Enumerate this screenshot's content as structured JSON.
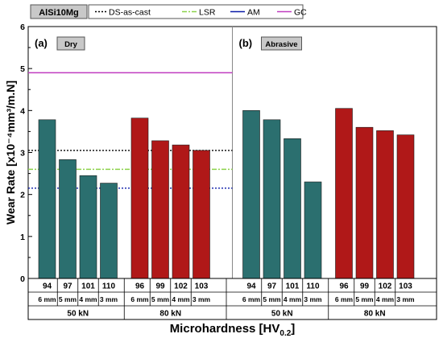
{
  "chart_data": {
    "type": "bar",
    "material": "AlSi10Mg",
    "ylabel": "Wear Rate [x10⁻⁴mm³/m.N]",
    "xlabel_main": "Microhardness [HV",
    "xlabel_sub": "0.2",
    "xlabel_close": "]",
    "ylim": [
      0,
      6
    ],
    "yticks": [
      0,
      1,
      2,
      3,
      4,
      5,
      6
    ],
    "legend": [
      {
        "label": "DS-as-cast",
        "color": "#000000",
        "dash": "dot"
      },
      {
        "label": "LSR",
        "color": "#8cd24a",
        "dash": "dashdot"
      },
      {
        "label": "AM",
        "color": "#0a1aa8",
        "dash": "solid"
      },
      {
        "label": "GC",
        "color": "#c03cc0",
        "dash": "solid"
      }
    ],
    "panels": [
      {
        "tag": "(a)",
        "condition": "Dry",
        "reference_lines": [
          {
            "name": "GC",
            "value": 4.9,
            "color": "#c03cc0",
            "dash": "solid"
          },
          {
            "name": "DS-as-cast",
            "value": 3.05,
            "color": "#000000",
            "dash": "dot"
          },
          {
            "name": "LSR",
            "value": 2.6,
            "color": "#8cd24a",
            "dash": "dashdot"
          },
          {
            "name": "AM",
            "value": 2.15,
            "color": "#0a1aa8",
            "dash": "dot"
          }
        ],
        "groups": [
          {
            "load": "50 kN",
            "color": "#2b6f6f",
            "bars": [
              {
                "hardness": "94",
                "thickness": "6 mm",
                "value": 3.78
              },
              {
                "hardness": "97",
                "thickness": "5 mm",
                "value": 2.83
              },
              {
                "hardness": "101",
                "thickness": "4 mm",
                "value": 2.45
              },
              {
                "hardness": "110",
                "thickness": "3 mm",
                "value": 2.27
              }
            ]
          },
          {
            "load": "80 kN",
            "color": "#b01818",
            "bars": [
              {
                "hardness": "96",
                "thickness": "6 mm",
                "value": 3.82
              },
              {
                "hardness": "99",
                "thickness": "5 mm",
                "value": 3.28
              },
              {
                "hardness": "102",
                "thickness": "4 mm",
                "value": 3.18
              },
              {
                "hardness": "103",
                "thickness": "3 mm",
                "value": 3.05
              }
            ]
          }
        ]
      },
      {
        "tag": "(b)",
        "condition": "Abrasive",
        "reference_lines": [],
        "groups": [
          {
            "load": "50 kN",
            "color": "#2b6f6f",
            "bars": [
              {
                "hardness": "94",
                "thickness": "6 mm",
                "value": 4.0
              },
              {
                "hardness": "97",
                "thickness": "5 mm",
                "value": 3.78
              },
              {
                "hardness": "101",
                "thickness": "4 mm",
                "value": 3.33
              },
              {
                "hardness": "110",
                "thickness": "3 mm",
                "value": 2.3
              }
            ]
          },
          {
            "load": "80 kN",
            "color": "#b01818",
            "bars": [
              {
                "hardness": "96",
                "thickness": "6 mm",
                "value": 4.05
              },
              {
                "hardness": "99",
                "thickness": "5 mm",
                "value": 3.6
              },
              {
                "hardness": "102",
                "thickness": "4 mm",
                "value": 3.52
              },
              {
                "hardness": "103",
                "thickness": "3 mm",
                "value": 3.42
              }
            ]
          }
        ]
      }
    ]
  }
}
